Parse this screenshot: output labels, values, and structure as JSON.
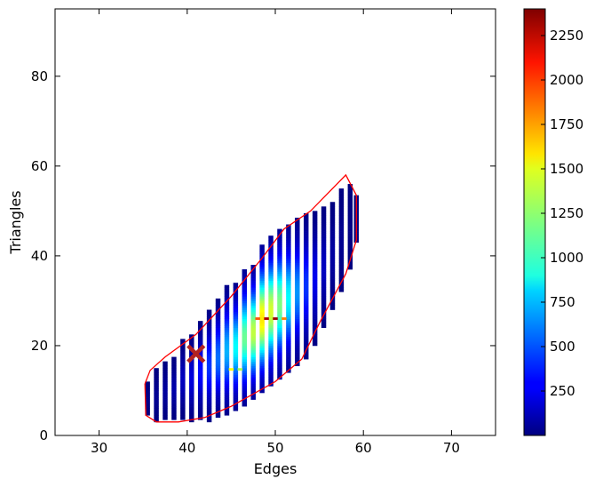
{
  "chart_data": {
    "type": "heatmap",
    "title": "",
    "xlabel": "Edges",
    "ylabel": "Triangles",
    "xlim": [
      25,
      75
    ],
    "ylim": [
      0,
      95
    ],
    "xticks": [
      "30",
      "40",
      "50",
      "60",
      "70"
    ],
    "xtick_values": [
      30,
      40,
      50,
      60,
      70
    ],
    "yticks": [
      "0",
      "20",
      "40",
      "60",
      "80"
    ],
    "ytick_values": [
      0,
      20,
      40,
      60,
      80
    ],
    "grid": false,
    "colormap": "jet",
    "colorbar": {
      "min": 0,
      "max": 2400,
      "ticks": [
        "250",
        "500",
        "750",
        "1000",
        "1250",
        "1500",
        "1750",
        "2000",
        "2250"
      ],
      "tick_values": [
        250,
        500,
        750,
        1000,
        1250,
        1500,
        1750,
        2000,
        2250
      ]
    },
    "hull": {
      "color": "#ff0000",
      "points": [
        [
          35.2,
          11.5
        ],
        [
          35.8,
          14.5
        ],
        [
          37.5,
          17.5
        ],
        [
          41,
          22.5
        ],
        [
          45,
          31
        ],
        [
          48.5,
          39.5
        ],
        [
          51,
          46
        ],
        [
          54,
          50
        ],
        [
          58,
          58
        ],
        [
          59.2,
          53.5
        ],
        [
          59.2,
          43.5
        ],
        [
          58,
          36
        ],
        [
          55,
          25
        ],
        [
          53,
          17
        ],
        [
          50,
          12
        ],
        [
          45,
          6.5
        ],
        [
          42,
          4
        ],
        [
          39,
          3
        ],
        [
          36.5,
          3
        ],
        [
          35.3,
          4.5
        ],
        [
          35.2,
          11.5
        ]
      ]
    },
    "marker": {
      "x": 41,
      "y": 18.2,
      "symbol": "x",
      "color": "#b22222"
    },
    "columns": [
      {
        "x": 35.5,
        "y_min": 4.5,
        "y_max": 12,
        "peak": 25
      },
      {
        "x": 36.5,
        "y_min": 3,
        "y_max": 15,
        "peak": 45
      },
      {
        "x": 37.5,
        "y_min": 3.5,
        "y_max": 16.5,
        "peak": 70
      },
      {
        "x": 38.5,
        "y_min": 3.5,
        "y_max": 17.5,
        "peak": 100
      },
      {
        "x": 39.5,
        "y_min": 3.5,
        "y_max": 21.5,
        "peak": 150
      },
      {
        "x": 40.5,
        "y_min": 3,
        "y_max": 22.5,
        "peak": 220
      },
      {
        "x": 41.5,
        "y_min": 3.5,
        "y_max": 25.5,
        "peak": 320
      },
      {
        "x": 42.5,
        "y_min": 3,
        "y_max": 28,
        "peak": 420
      },
      {
        "x": 43.5,
        "y_min": 4,
        "y_max": 30.5,
        "peak": 560
      },
      {
        "x": 44.5,
        "y_min": 4.5,
        "y_max": 33.5,
        "peak": 720
      },
      {
        "x": 45.5,
        "y_min": 5.5,
        "y_max": 34,
        "peak": 900
      },
      {
        "x": 46.5,
        "y_min": 6.5,
        "y_max": 37,
        "peak": 1150
      },
      {
        "x": 47.5,
        "y_min": 8,
        "y_max": 38,
        "peak": 1350
      },
      {
        "x": 48.5,
        "y_min": 9.5,
        "y_max": 42.5,
        "peak": 1550
      },
      {
        "x": 49.5,
        "y_min": 11,
        "y_max": 44.5,
        "peak": 1400
      },
      {
        "x": 50.5,
        "y_min": 12.5,
        "y_max": 46,
        "peak": 1200
      },
      {
        "x": 51.5,
        "y_min": 14,
        "y_max": 47,
        "peak": 900
      },
      {
        "x": 52.5,
        "y_min": 15.5,
        "y_max": 48.5,
        "peak": 650
      },
      {
        "x": 53.5,
        "y_min": 17,
        "y_max": 49.5,
        "peak": 420
      },
      {
        "x": 54.5,
        "y_min": 20,
        "y_max": 50,
        "peak": 260
      },
      {
        "x": 55.5,
        "y_min": 24,
        "y_max": 51,
        "peak": 150
      },
      {
        "x": 56.5,
        "y_min": 28,
        "y_max": 52,
        "peak": 80
      },
      {
        "x": 57.5,
        "y_min": 32,
        "y_max": 55,
        "peak": 40
      },
      {
        "x": 58.5,
        "y_min": 37,
        "y_max": 56,
        "peak": 15
      },
      {
        "x": 59.2,
        "y_min": 43,
        "y_max": 53.5,
        "peak": 5
      }
    ],
    "hot_cells": [
      {
        "x": 48,
        "y": 25.8,
        "value": 1900
      },
      {
        "x": 49,
        "y": 25.8,
        "value": 2300
      },
      {
        "x": 50,
        "y": 25.8,
        "value": 2350
      },
      {
        "x": 51,
        "y": 25.8,
        "value": 1800
      },
      {
        "x": 45,
        "y": 14.5,
        "value": 1500
      },
      {
        "x": 46,
        "y": 14.5,
        "value": 1300
      }
    ]
  }
}
